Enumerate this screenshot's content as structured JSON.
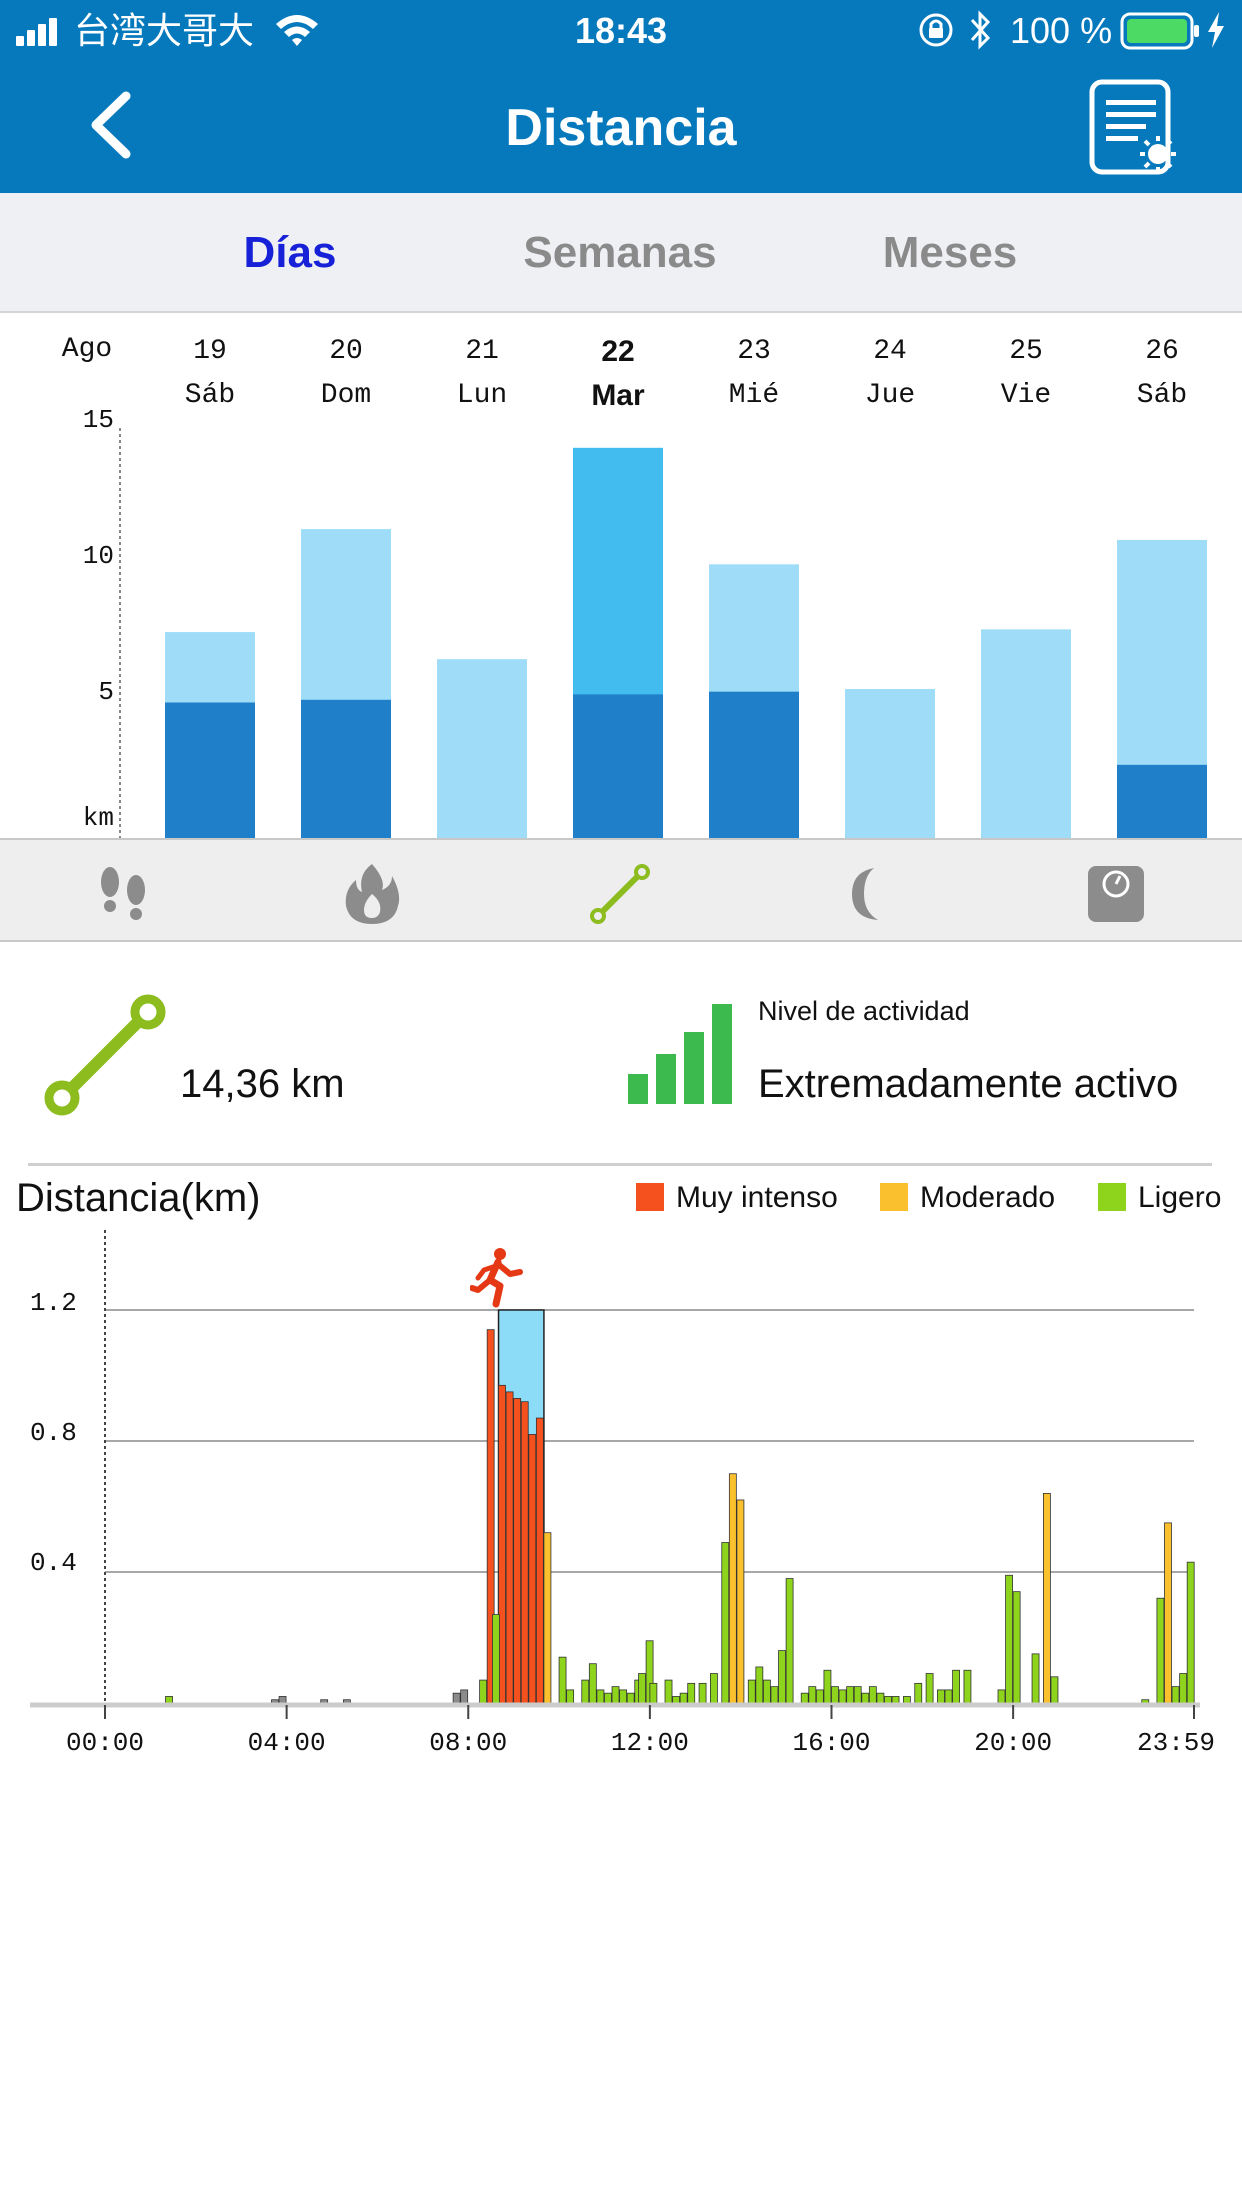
{
  "status_bar": {
    "carrier": "台湾大哥大",
    "time": "18:43",
    "battery_percent": "100 %",
    "battery_level": 1.0,
    "icons": [
      "signal-icon",
      "wifi-icon",
      "orientation-lock-icon",
      "bluetooth-icon",
      "battery-icon",
      "charging-icon"
    ]
  },
  "nav": {
    "title": "Distancia",
    "back_icon": "chevron-left-icon",
    "report_icon": "report-settings-icon"
  },
  "tabs": [
    {
      "label": "Días",
      "active": true
    },
    {
      "label": "Semanas",
      "active": false
    },
    {
      "label": "Meses",
      "active": false
    }
  ],
  "day_chart": {
    "month_label": "Ago",
    "unit_label": "km",
    "y_ticks": [
      "15",
      "10",
      "5"
    ],
    "ylim": [
      0,
      15.5
    ],
    "selected_index": 3,
    "days": [
      {
        "num": "19",
        "name": "Sáb",
        "total": 7.6,
        "intense": 5.0
      },
      {
        "num": "20",
        "name": "Dom",
        "total": 11.4,
        "intense": 5.1
      },
      {
        "num": "21",
        "name": "Lun",
        "total": 6.6,
        "intense": 0
      },
      {
        "num": "22",
        "name": "Mar",
        "total": 14.4,
        "intense": 5.3
      },
      {
        "num": "23",
        "name": "Mié",
        "total": 10.1,
        "intense": 5.4
      },
      {
        "num": "24",
        "name": "Jue",
        "total": 5.5,
        "intense": 0
      },
      {
        "num": "25",
        "name": "Vie",
        "total": 7.7,
        "intense": 0
      },
      {
        "num": "26",
        "name": "Sáb",
        "total": 11.0,
        "intense": 2.7
      }
    ],
    "colors": {
      "intense": "#1f7fc9",
      "light": "#9fdcf7",
      "selected_light": "#42bbef"
    }
  },
  "metric_bar": [
    {
      "name": "steps-icon",
      "active": false
    },
    {
      "name": "calories-flame-icon",
      "active": false
    },
    {
      "name": "distance-route-icon",
      "active": true
    },
    {
      "name": "sleep-moon-icon",
      "active": false
    },
    {
      "name": "weight-scale-icon",
      "active": false
    }
  ],
  "summary": {
    "distance_value": "14,36 km",
    "activity_label": "Nivel de actividad",
    "activity_value": "Extremadamente activo",
    "activity_level_bars": 4
  },
  "distance_chart": {
    "title": "Distancia(km)",
    "legend": [
      {
        "label": "Muy intenso",
        "color": "#f4511e"
      },
      {
        "label": "Moderado",
        "color": "#fbc02d"
      },
      {
        "label": "Ligero",
        "color": "#8ed31c"
      }
    ],
    "y_ticks": [
      "1.2",
      "0.8",
      "0.4"
    ],
    "x_ticks": [
      "00:00",
      "04:00",
      "08:00",
      "12:00",
      "16:00",
      "20:00",
      "23:59"
    ],
    "highlight_minutes": [
      520,
      580
    ]
  },
  "chart_data": {
    "type": "bar",
    "xlabel": "",
    "ylabel": "Distancia(km)",
    "ylim": [
      0,
      1.2
    ],
    "x_range_minutes": [
      0,
      1439
    ],
    "bin_minutes": 10,
    "series": [
      {
        "name": "Muy intenso",
        "points": [
          [
            505,
            1.14
          ],
          [
            520,
            0.97
          ],
          [
            530,
            0.95
          ],
          [
            540,
            0.93
          ],
          [
            550,
            0.92
          ],
          [
            560,
            0.82
          ],
          [
            570,
            0.87
          ]
        ]
      },
      {
        "name": "Moderado",
        "points": [
          [
            580,
            0.52
          ],
          [
            825,
            0.7
          ],
          [
            835,
            0.62
          ],
          [
            1240,
            0.64
          ],
          [
            1400,
            0.55
          ]
        ]
      },
      {
        "name": "Ligero",
        "points": [
          [
            80,
            0.02
          ],
          [
            495,
            0.07
          ],
          [
            512,
            0.27
          ],
          [
            600,
            0.14
          ],
          [
            610,
            0.04
          ],
          [
            630,
            0.07
          ],
          [
            640,
            0.12
          ],
          [
            650,
            0.04
          ],
          [
            660,
            0.03
          ],
          [
            670,
            0.05
          ],
          [
            680,
            0.04
          ],
          [
            690,
            0.03
          ],
          [
            700,
            0.07
          ],
          [
            705,
            0.09
          ],
          [
            715,
            0.19
          ],
          [
            720,
            0.06
          ],
          [
            740,
            0.07
          ],
          [
            750,
            0.02
          ],
          [
            760,
            0.03
          ],
          [
            770,
            0.06
          ],
          [
            785,
            0.06
          ],
          [
            800,
            0.09
          ],
          [
            815,
            0.49
          ],
          [
            850,
            0.07
          ],
          [
            860,
            0.11
          ],
          [
            870,
            0.07
          ],
          [
            880,
            0.05
          ],
          [
            890,
            0.16
          ],
          [
            900,
            0.38
          ],
          [
            920,
            0.03
          ],
          [
            930,
            0.05
          ],
          [
            940,
            0.04
          ],
          [
            950,
            0.1
          ],
          [
            960,
            0.05
          ],
          [
            970,
            0.04
          ],
          [
            980,
            0.05
          ],
          [
            990,
            0.05
          ],
          [
            1000,
            0.03
          ],
          [
            1010,
            0.05
          ],
          [
            1020,
            0.03
          ],
          [
            1030,
            0.02
          ],
          [
            1040,
            0.02
          ],
          [
            1055,
            0.02
          ],
          [
            1070,
            0.06
          ],
          [
            1085,
            0.09
          ],
          [
            1100,
            0.04
          ],
          [
            1110,
            0.04
          ],
          [
            1120,
            0.1
          ],
          [
            1135,
            0.1
          ],
          [
            1180,
            0.04
          ],
          [
            1190,
            0.39
          ],
          [
            1200,
            0.34
          ],
          [
            1225,
            0.15
          ],
          [
            1250,
            0.08
          ],
          [
            1370,
            0.01
          ],
          [
            1390,
            0.32
          ],
          [
            1410,
            0.05
          ],
          [
            1420,
            0.09
          ],
          [
            1430,
            0.43
          ]
        ]
      },
      {
        "name": "",
        "points": [
          [
            220,
            0.01
          ],
          [
            230,
            0.02
          ],
          [
            285,
            0.01
          ],
          [
            315,
            0.01
          ],
          [
            460,
            0.03
          ],
          [
            470,
            0.04
          ]
        ]
      }
    ]
  }
}
